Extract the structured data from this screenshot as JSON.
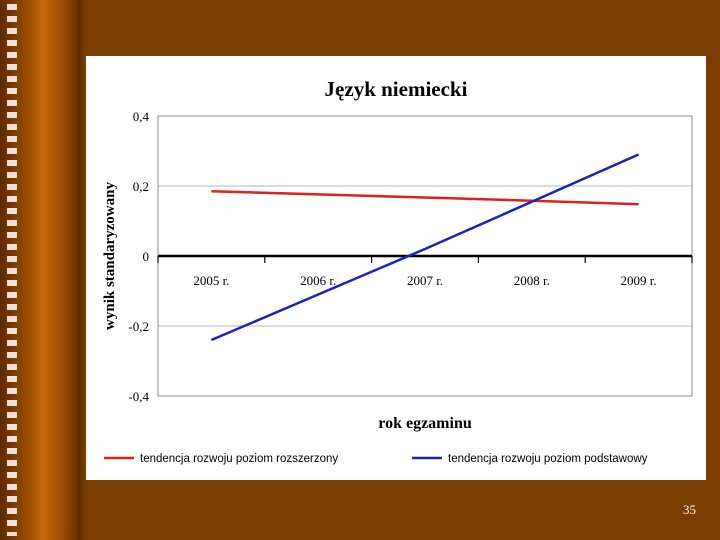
{
  "slide": {
    "number": "35"
  },
  "chart_data": {
    "type": "line",
    "title": "Język niemiecki",
    "xlabel": "rok egzaminu",
    "ylabel": "wynik standaryzowany",
    "categories": [
      "2005 r.",
      "2006 r.",
      "2007 r.",
      "2008 r.",
      "2009 r."
    ],
    "ylim": [
      -0.4,
      0.4
    ],
    "yticks": [
      {
        "value": 0.4,
        "label": "0,4"
      },
      {
        "value": 0.2,
        "label": "0,2"
      },
      {
        "value": 0,
        "label": "0"
      },
      {
        "value": -0.2,
        "label": "-0,2"
      },
      {
        "value": -0.4,
        "label": "-0,4"
      }
    ],
    "grid": true,
    "legend_position": "bottom",
    "series": [
      {
        "name": "tendencja rozwoju poziom rozszerzony",
        "color": "#e0201a",
        "values": [
          0.185,
          0.176,
          0.167,
          0.158,
          0.148
        ]
      },
      {
        "name": "tendencja rozwoju poziom podstawowy",
        "color": "#1a22c0",
        "values": [
          -0.24,
          -0.11,
          0.02,
          0.155,
          0.29
        ]
      }
    ]
  }
}
